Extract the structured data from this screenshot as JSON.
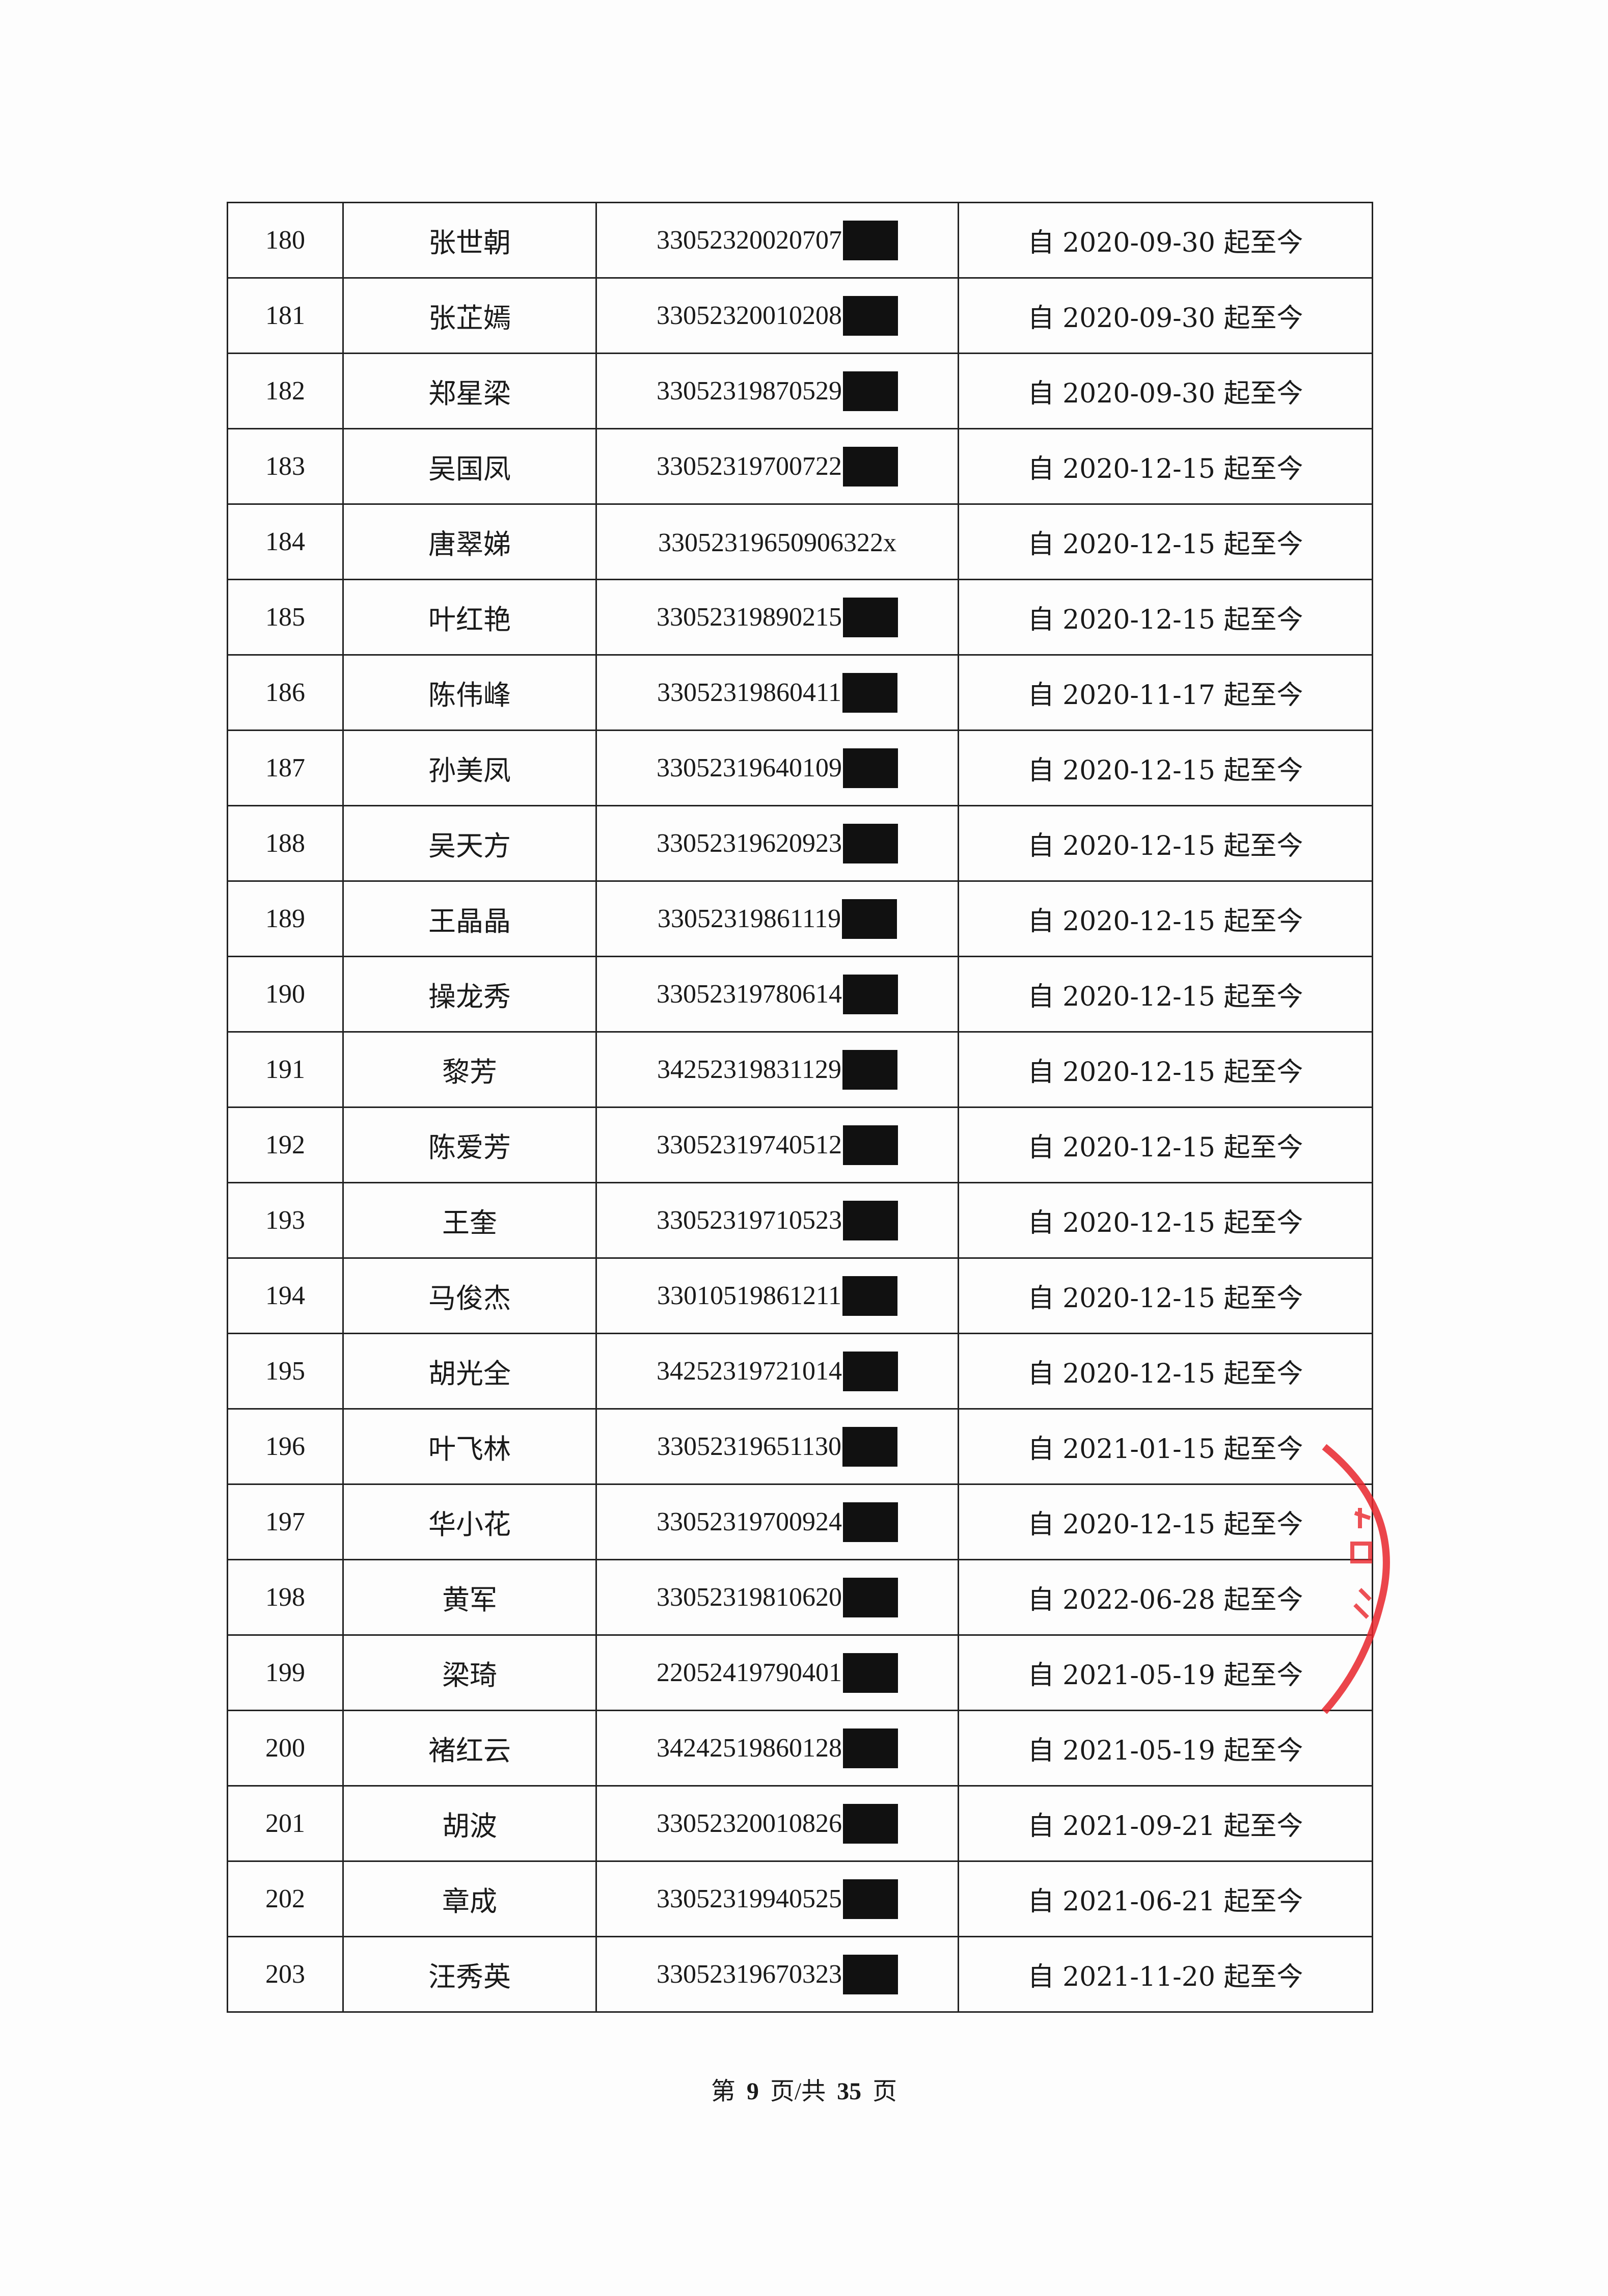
{
  "rows": [
    {
      "no": "180",
      "name": "张世朝",
      "id": "33052320020707",
      "redacted": true,
      "period": "自 2020-09-30 起至今"
    },
    {
      "no": "181",
      "name": "张芷嫣",
      "id": "33052320010208",
      "redacted": true,
      "period": "自 2020-09-30 起至今"
    },
    {
      "no": "182",
      "name": "郑星梁",
      "id": "33052319870529",
      "redacted": true,
      "period": "自 2020-09-30 起至今"
    },
    {
      "no": "183",
      "name": "吴国凤",
      "id": "33052319700722",
      "redacted": true,
      "period": "自 2020-12-15 起至今"
    },
    {
      "no": "184",
      "name": "唐翠娣",
      "id": "33052319650906322x",
      "redacted": false,
      "period": "自 2020-12-15 起至今"
    },
    {
      "no": "185",
      "name": "叶红艳",
      "id": "33052319890215",
      "redacted": true,
      "period": "自 2020-12-15 起至今"
    },
    {
      "no": "186",
      "name": "陈伟峰",
      "id": "33052319860411",
      "redacted": true,
      "period": "自 2020-11-17 起至今"
    },
    {
      "no": "187",
      "name": "孙美凤",
      "id": "33052319640109",
      "redacted": true,
      "period": "自 2020-12-15 起至今"
    },
    {
      "no": "188",
      "name": "吴天方",
      "id": "33052319620923",
      "redacted": true,
      "period": "自 2020-12-15 起至今"
    },
    {
      "no": "189",
      "name": "王晶晶",
      "id": "33052319861119",
      "redacted": true,
      "period": "自 2020-12-15 起至今"
    },
    {
      "no": "190",
      "name": "操龙秀",
      "id": "33052319780614",
      "redacted": true,
      "period": "自 2020-12-15 起至今"
    },
    {
      "no": "191",
      "name": "黎芳",
      "id": "34252319831129",
      "redacted": true,
      "period": "自 2020-12-15 起至今"
    },
    {
      "no": "192",
      "name": "陈爱芳",
      "id": "33052319740512",
      "redacted": true,
      "period": "自 2020-12-15 起至今"
    },
    {
      "no": "193",
      "name": "王奎",
      "id": "33052319710523",
      "redacted": true,
      "period": "自 2020-12-15 起至今"
    },
    {
      "no": "194",
      "name": "马俊杰",
      "id": "33010519861211",
      "redacted": true,
      "period": "自 2020-12-15 起至今"
    },
    {
      "no": "195",
      "name": "胡光全",
      "id": "34252319721014",
      "redacted": true,
      "period": "自 2020-12-15 起至今"
    },
    {
      "no": "196",
      "name": "叶飞林",
      "id": "33052319651130",
      "redacted": true,
      "period": "自 2021-01-15 起至今"
    },
    {
      "no": "197",
      "name": "华小花",
      "id": "33052319700924",
      "redacted": true,
      "period": "自 2020-12-15 起至今"
    },
    {
      "no": "198",
      "name": "黄军",
      "id": "33052319810620",
      "redacted": true,
      "period": "自 2022-06-28 起至今"
    },
    {
      "no": "199",
      "name": "梁琦",
      "id": "22052419790401",
      "redacted": true,
      "period": "自 2021-05-19 起至今"
    },
    {
      "no": "200",
      "name": "褚红云",
      "id": "34242519860128",
      "redacted": true,
      "period": "自 2021-05-19 起至今"
    },
    {
      "no": "201",
      "name": "胡波",
      "id": "33052320010826",
      "redacted": true,
      "period": "自 2021-09-21 起至今"
    },
    {
      "no": "202",
      "name": "章成",
      "id": "33052319940525",
      "redacted": true,
      "period": "自 2021-06-21 起至今"
    },
    {
      "no": "203",
      "name": "汪秀英",
      "id": "33052319670323",
      "redacted": true,
      "period": "自 2021-11-20 起至今"
    }
  ],
  "footer": {
    "prefix": "第",
    "page": "9",
    "middle": "页/共",
    "total": "35",
    "suffix": "页"
  },
  "stamp_color": "#e8242b"
}
